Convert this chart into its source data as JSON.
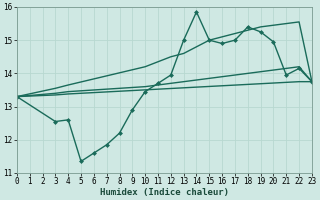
{
  "xlabel": "Humidex (Indice chaleur)",
  "xlim": [
    0,
    23
  ],
  "ylim": [
    11,
    16
  ],
  "yticks": [
    11,
    12,
    13,
    14,
    15,
    16
  ],
  "xticks": [
    0,
    1,
    2,
    3,
    4,
    5,
    6,
    7,
    8,
    9,
    10,
    11,
    12,
    13,
    14,
    15,
    16,
    17,
    18,
    19,
    20,
    21,
    22,
    23
  ],
  "bg_color": "#cfe8e3",
  "grid_color": "#b8d8d0",
  "line_color": "#1a6b5a",
  "line1_x": [
    0,
    3,
    4,
    10,
    11,
    12,
    13,
    14,
    15,
    16,
    17,
    18,
    19,
    20,
    21,
    22,
    23
  ],
  "line1_y": [
    13.3,
    13.4,
    13.45,
    13.6,
    13.65,
    13.7,
    13.75,
    13.8,
    13.85,
    13.9,
    13.95,
    14.0,
    14.05,
    14.1,
    14.15,
    14.2,
    13.75
  ],
  "line2_x": [
    0,
    3,
    4,
    10,
    11,
    12,
    13,
    14,
    15,
    16,
    17,
    18,
    19,
    20,
    21,
    22,
    23
  ],
  "line2_y": [
    13.3,
    13.55,
    13.65,
    14.2,
    14.35,
    14.5,
    14.6,
    14.8,
    15.0,
    15.1,
    15.2,
    15.3,
    15.4,
    15.45,
    15.5,
    15.55,
    13.75
  ],
  "line3_x": [
    0,
    3,
    4,
    5,
    6,
    7,
    8,
    9,
    10,
    11,
    12,
    13,
    14,
    15,
    16,
    17,
    18,
    19,
    20,
    21,
    22,
    23
  ],
  "line3_y": [
    13.3,
    12.55,
    12.6,
    11.35,
    11.6,
    11.85,
    12.2,
    12.9,
    13.45,
    13.7,
    13.95,
    15.0,
    15.85,
    15.0,
    14.9,
    15.0,
    15.4,
    15.25,
    14.95,
    13.95,
    14.15,
    13.75
  ],
  "line4_x": [
    0,
    3,
    4,
    22,
    23
  ],
  "line4_y": [
    13.3,
    13.35,
    13.38,
    13.75,
    13.75
  ]
}
